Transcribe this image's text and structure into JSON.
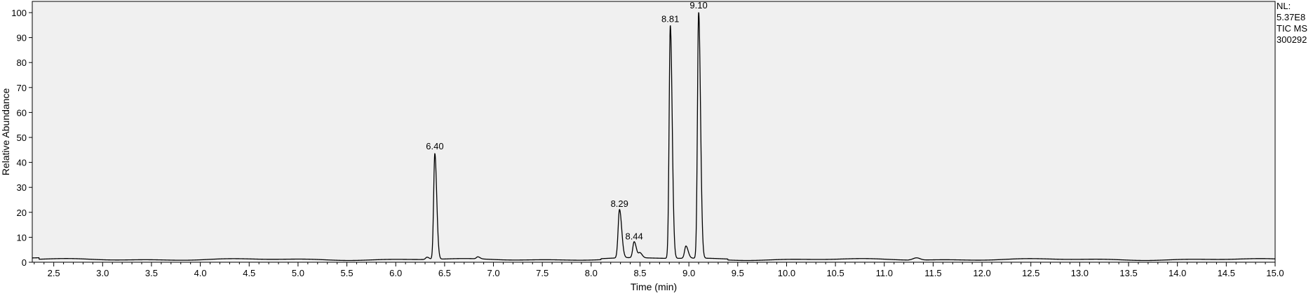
{
  "chart_data": {
    "type": "line",
    "xlabel": "Time (min)",
    "ylabel": "Relative Abundance",
    "xlim": [
      2.28,
      15.0
    ],
    "ylim": [
      0,
      100
    ],
    "x_ticks": [
      "2.5",
      "3.0",
      "3.5",
      "4.0",
      "4.5",
      "5.0",
      "5.5",
      "6.0",
      "6.5",
      "7.0",
      "7.5",
      "8.0",
      "8.5",
      "9.0",
      "9.5",
      "10.0",
      "10.5",
      "11.0",
      "11.5",
      "12.0",
      "12.5",
      "13.0",
      "13.5",
      "14.0",
      "14.5",
      "15.0"
    ],
    "y_ticks": [
      "0",
      "10",
      "20",
      "30",
      "40",
      "50",
      "60",
      "70",
      "80",
      "90",
      "100"
    ],
    "baseline": 1.1,
    "peaks": [
      {
        "rt": 6.4,
        "height": 43.5,
        "label": "6.40"
      },
      {
        "rt": 8.29,
        "height": 20.5,
        "label": "8.29"
      },
      {
        "rt": 8.44,
        "height": 7.5,
        "label": "8.44"
      },
      {
        "rt": 8.81,
        "height": 94.5,
        "label": "8.81"
      },
      {
        "rt": 9.1,
        "height": 100,
        "label": "9.10"
      }
    ],
    "minor_peaks": [
      {
        "rt": 8.5,
        "height": 3.0
      },
      {
        "rt": 8.97,
        "height": 6.0
      },
      {
        "rt": 6.32,
        "height": 2.0
      },
      {
        "rt": 6.84,
        "height": 1.9
      }
    ],
    "background_color": "#f0f0f0",
    "line_color": "#000000"
  },
  "side_info": {
    "nl_label": "NL:",
    "nl_value": "5.37E8",
    "trace": "TIC  MS",
    "sample": "300292"
  }
}
